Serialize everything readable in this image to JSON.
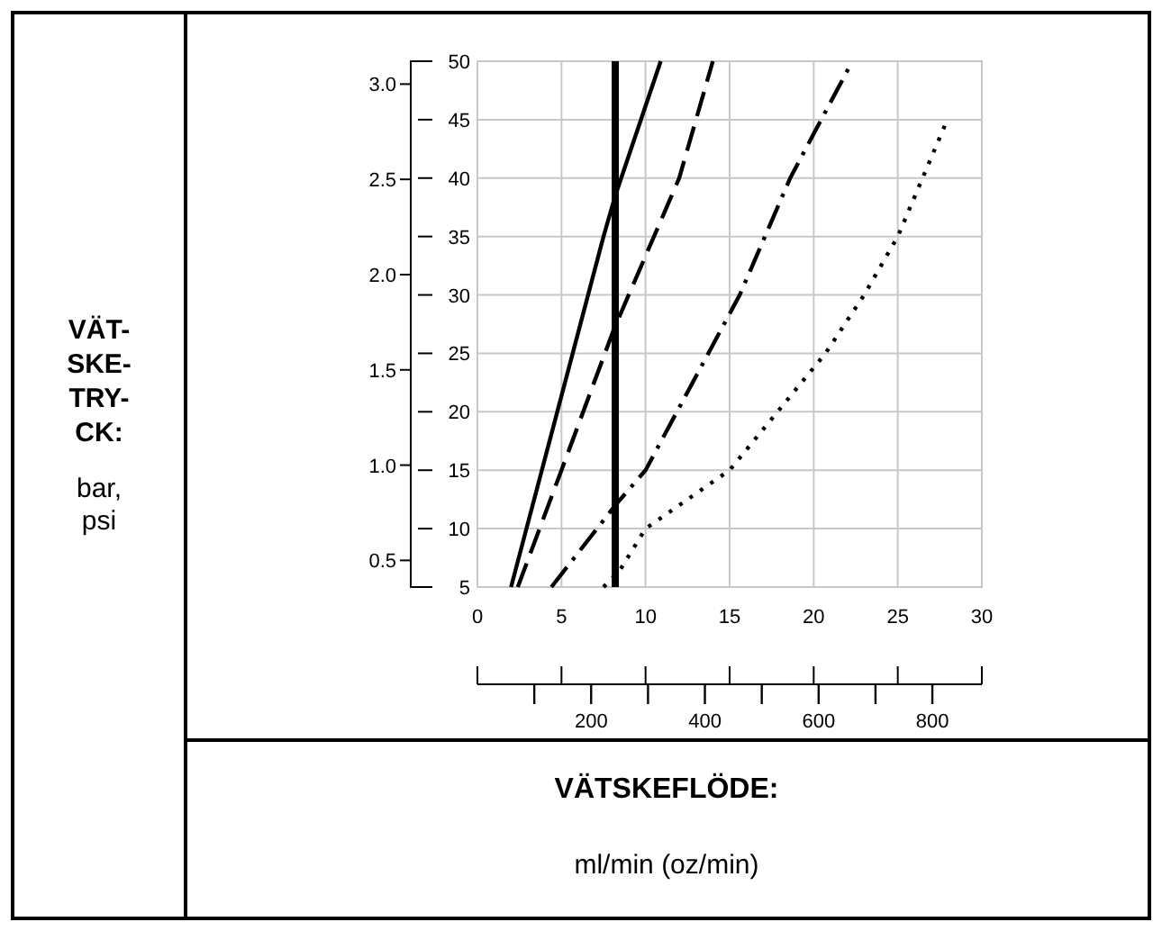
{
  "chart_data": {
    "type": "line",
    "xlabel": "VÄTSKEFLÖDE:",
    "annotations": [
      "VÄT-SKE-TRY-CK:",
      "bar, psi",
      "ml/min (oz/min)"
    ],
    "xlim": [
      0,
      30
    ],
    "xticks": [
      0,
      5,
      10,
      15,
      20,
      25,
      30
    ],
    "x2lim": [
      0,
      887
    ],
    "x2ticks": [
      200,
      400,
      600,
      800
    ],
    "ylim": [
      5,
      50
    ],
    "yticks": [
      5,
      10,
      15,
      20,
      25,
      30,
      35,
      40,
      45,
      50
    ],
    "y2lim": [
      0.36,
      3.12
    ],
    "y2ticks": [
      {
        "value": 0.5,
        "label": "0.5"
      },
      {
        "value": 1.0,
        "label": "1.0"
      },
      {
        "value": 1.5,
        "label": "1.5"
      },
      {
        "value": 2.0,
        "label": "2.0"
      },
      {
        "value": 2.5,
        "label": "2.5"
      },
      {
        "value": 3.0,
        "label": "3.0"
      }
    ],
    "grid": true,
    "marker": "none",
    "series": [
      {
        "color": "#000000",
        "line_style": "solid",
        "x": [
          2,
          7.5,
          8.2,
          10.9
        ],
        "values": [
          5,
          35,
          38.5,
          50
        ]
      },
      {
        "color": "#000000",
        "line_style": "dashed",
        "x": [
          2.4,
          5,
          8.1,
          12,
          14
        ],
        "values": [
          5,
          15,
          27,
          40,
          50
        ]
      },
      {
        "color": "#000000",
        "line_style": "dashdot",
        "x": [
          4.4,
          8.2,
          10,
          15.6,
          18.6,
          22.3
        ],
        "values": [
          5,
          12,
          15,
          30,
          40,
          50
        ]
      },
      {
        "color": "#000000",
        "line_style": "dotted",
        "x": [
          7.5,
          8.5,
          10,
          15,
          20.7,
          23,
          25,
          27.8
        ],
        "values": [
          5,
          6.5,
          10,
          15,
          25,
          30,
          35,
          44.5
        ]
      }
    ],
    "ref_lines": [
      {
        "axis": "x",
        "value": 8.2,
        "color": "#000000",
        "line_style": "solid"
      }
    ]
  }
}
